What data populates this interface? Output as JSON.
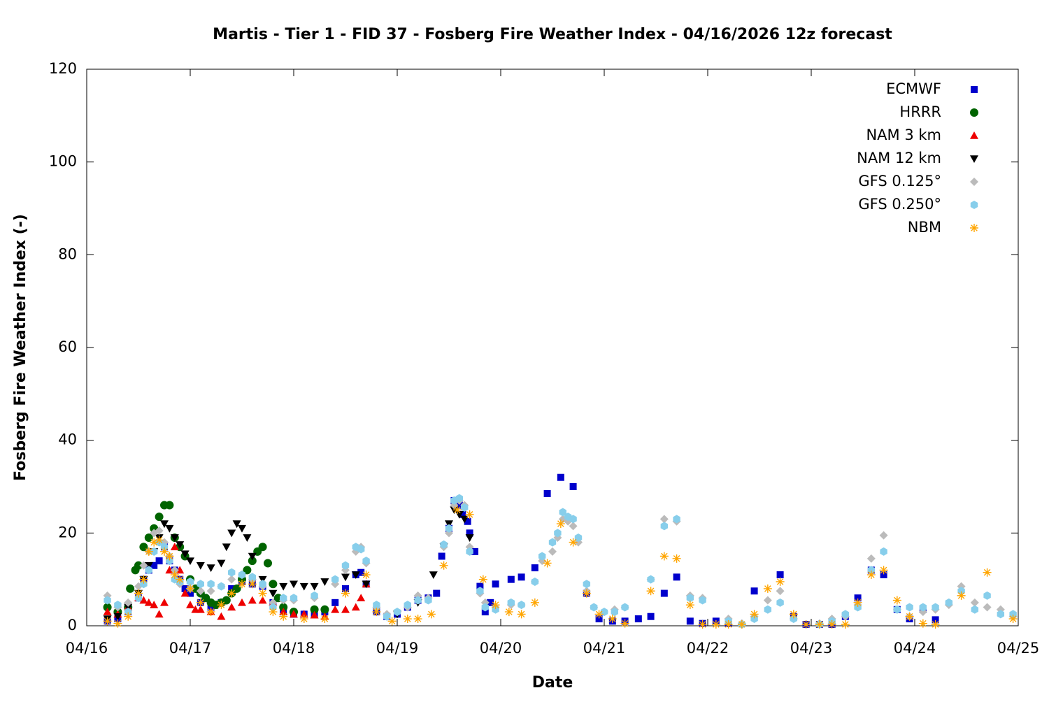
{
  "chart_data": {
    "type": "scatter",
    "title": "Martis - Tier 1 - FID 37 - Fosberg Fire Weather Index - 04/16/2026 12z forecast",
    "x_label": "Date",
    "y_label": "Fosberg Fire Weather Index (-)",
    "xlim": [
      0,
      9
    ],
    "ylim": [
      0,
      120
    ],
    "xticks": [
      {
        "value": 0,
        "label": "04/16"
      },
      {
        "value": 1,
        "label": "04/17"
      },
      {
        "value": 2,
        "label": "04/18"
      },
      {
        "value": 3,
        "label": "04/19"
      },
      {
        "value": 4,
        "label": "04/20"
      },
      {
        "value": 5,
        "label": "04/21"
      },
      {
        "value": 6,
        "label": "04/22"
      },
      {
        "value": 7,
        "label": "04/23"
      },
      {
        "value": 8,
        "label": "04/24"
      },
      {
        "value": 9,
        "label": "04/25"
      }
    ],
    "yticks": [
      0,
      20,
      40,
      60,
      80,
      100,
      120
    ],
    "legend": "top-right",
    "series": [
      {
        "name": "ECMWF",
        "color": "#0000cc",
        "marker": "square",
        "x": [
          0.2,
          0.3,
          0.4,
          0.5,
          0.55,
          0.6,
          0.65,
          0.7,
          0.75,
          0.8,
          0.85,
          0.9,
          0.95,
          1.0,
          1.1,
          1.2,
          1.3,
          1.4,
          1.5,
          1.6,
          1.7,
          1.8,
          1.9,
          2.0,
          2.1,
          2.2,
          2.3,
          2.4,
          2.5,
          2.6,
          2.65,
          2.7,
          2.8,
          2.9,
          3.0,
          3.1,
          3.2,
          3.3,
          3.38,
          3.43,
          3.5,
          3.55,
          3.6,
          3.63,
          3.68,
          3.7,
          3.75,
          3.8,
          3.85,
          3.9,
          3.95,
          4.1,
          4.2,
          4.33,
          4.45,
          4.58,
          4.7,
          4.83,
          4.95,
          5.08,
          5.2,
          5.33,
          5.45,
          5.58,
          5.7,
          5.83,
          5.95,
          6.08,
          6.2,
          6.45,
          6.7,
          6.83,
          6.95,
          7.08,
          7.2,
          7.33,
          7.45,
          7.58,
          7.7,
          7.83,
          7.95,
          8.08,
          8.2
        ],
        "values": [
          1,
          1.5,
          3,
          6,
          10,
          12,
          13,
          14,
          17,
          14,
          12,
          10,
          8,
          7,
          5,
          4,
          5,
          8,
          9.5,
          9,
          8.5,
          5,
          3,
          2.5,
          2.5,
          2.5,
          3,
          5,
          8,
          11,
          11.5,
          9,
          3,
          2,
          2.5,
          4,
          5.5,
          6,
          7,
          15,
          21,
          27,
          26,
          24,
          22.5,
          20,
          16,
          8.5,
          3,
          5,
          9,
          10,
          10.5,
          12.5,
          28.5,
          32,
          30,
          7,
          1.5,
          1,
          1,
          1.5,
          2,
          7,
          10.5,
          1,
          0.5,
          1,
          0.5,
          7.5,
          11,
          2,
          0.3,
          0.3,
          0.3,
          2,
          6,
          12,
          11,
          3.5,
          1.5,
          3.5,
          1.3
        ]
      },
      {
        "name": "HRRR",
        "color": "#006400",
        "marker": "circle",
        "x": [
          0.2,
          0.3,
          0.4,
          0.42,
          0.47,
          0.5,
          0.55,
          0.6,
          0.65,
          0.7,
          0.75,
          0.8,
          0.85,
          0.9,
          0.95,
          1.0,
          1.05,
          1.1,
          1.15,
          1.2,
          1.25,
          1.3,
          1.35,
          1.4,
          1.45,
          1.5,
          1.55,
          1.6,
          1.65,
          1.7,
          1.75,
          1.8,
          1.85,
          1.9,
          2.0,
          2.2,
          2.3
        ],
        "values": [
          4,
          3,
          4,
          8,
          12,
          13,
          17,
          19,
          21,
          23.5,
          26,
          26,
          19,
          17,
          15,
          10,
          8,
          7,
          6,
          5,
          4.5,
          5,
          5.5,
          7,
          8,
          10,
          12,
          14,
          16,
          17,
          13.5,
          9,
          6,
          4,
          3,
          3.5,
          3.5
        ]
      },
      {
        "name": "NAM 3 km",
        "color": "#ee0000",
        "marker": "triangle",
        "x": [
          0.2,
          0.3,
          0.4,
          0.5,
          0.55,
          0.6,
          0.65,
          0.7,
          0.75,
          0.8,
          0.85,
          0.9,
          0.95,
          1.0,
          1.05,
          1.1,
          1.2,
          1.3,
          1.4,
          1.5,
          1.6,
          1.7,
          1.8,
          1.9,
          2.0,
          2.1,
          2.2,
          2.3,
          2.4,
          2.5,
          2.6,
          2.65,
          2.7
        ],
        "values": [
          3,
          2.5,
          4,
          6,
          5.5,
          5,
          4.5,
          2.5,
          5,
          12,
          17,
          12,
          7,
          4.5,
          3.5,
          3.5,
          3,
          2,
          4,
          5,
          5.5,
          5.5,
          5,
          3,
          2.5,
          2.5,
          2.3,
          2,
          3.5,
          3.5,
          4,
          6,
          9
        ]
      },
      {
        "name": "NAM 12 km",
        "color": "#000000",
        "marker": "triangle-down",
        "x": [
          0.2,
          0.3,
          0.4,
          0.5,
          0.55,
          0.6,
          0.65,
          0.7,
          0.75,
          0.8,
          0.85,
          0.9,
          0.95,
          1.0,
          1.1,
          1.2,
          1.3,
          1.35,
          1.4,
          1.45,
          1.5,
          1.55,
          1.6,
          1.7,
          1.8,
          1.9,
          2.0,
          2.1,
          2.2,
          2.3,
          2.5,
          2.6,
          2.7,
          3.0,
          3.2,
          3.35,
          3.45,
          3.5,
          3.55,
          3.6,
          3.65,
          3.7
        ],
        "values": [
          1.5,
          2,
          4,
          7,
          10,
          13,
          16,
          19,
          22,
          21,
          19,
          17.5,
          15.5,
          14,
          13,
          12.5,
          13.5,
          17,
          20,
          22,
          21,
          19,
          15,
          10,
          7,
          8.5,
          9,
          8.5,
          8.5,
          9.5,
          10.5,
          11,
          9,
          2.5,
          5,
          11,
          17,
          22,
          25,
          24,
          23,
          19
        ]
      },
      {
        "name": "GFS 0.125°",
        "color": "#bbbbbb",
        "marker": "diamond",
        "x": [
          0.2,
          0.3,
          0.4,
          0.5,
          0.55,
          0.6,
          0.65,
          0.7,
          0.75,
          0.8,
          0.85,
          0.9,
          1.0,
          1.1,
          1.2,
          1.3,
          1.4,
          1.5,
          1.6,
          1.7,
          1.8,
          1.9,
          2.0,
          2.2,
          2.4,
          2.5,
          2.6,
          2.65,
          2.7,
          2.8,
          2.9,
          3.0,
          3.1,
          3.2,
          3.3,
          3.45,
          3.5,
          3.55,
          3.6,
          3.65,
          3.7,
          3.8,
          3.85,
          3.95,
          4.1,
          4.2,
          4.33,
          4.4,
          4.5,
          4.55,
          4.6,
          4.65,
          4.7,
          4.75,
          4.83,
          4.9,
          5.0,
          5.1,
          5.2,
          5.45,
          5.58,
          5.7,
          5.83,
          5.95,
          6.2,
          6.33,
          6.45,
          6.58,
          6.7,
          6.83,
          7.08,
          7.2,
          7.33,
          7.45,
          7.58,
          7.7,
          7.83,
          7.95,
          8.08,
          8.2,
          8.33,
          8.45,
          8.58,
          8.7,
          8.83,
          8.95
        ],
        "values": [
          6.5,
          4,
          5,
          8.5,
          13,
          16,
          20,
          20.5,
          18,
          15,
          12,
          9,
          8,
          7.5,
          7.5,
          8.5,
          10,
          11,
          10,
          8.5,
          5,
          5.5,
          5.5,
          6,
          9,
          12,
          16,
          17,
          13.5,
          4,
          2.5,
          3,
          4,
          6.5,
          6,
          17,
          20,
          26,
          27,
          26,
          17,
          7,
          5,
          4,
          4.5,
          4.5,
          9.5,
          14,
          16,
          19,
          23,
          22.5,
          21.5,
          18,
          7.5,
          4,
          3,
          3.5,
          4,
          10,
          23,
          22.5,
          6.5,
          6,
          1.5,
          0.5,
          2,
          5.5,
          7.5,
          1.5,
          0.5,
          1.5,
          2,
          4.5,
          14.5,
          19.5,
          3.5,
          2,
          3,
          3.5,
          4.5,
          8.5,
          5,
          4,
          3.5,
          2
        ]
      },
      {
        "name": "GFS 0.250°",
        "color": "#87ceeb",
        "marker": "hexagon",
        "x": [
          0.2,
          0.3,
          0.4,
          0.5,
          0.55,
          0.6,
          0.65,
          0.7,
          0.75,
          0.8,
          0.85,
          0.9,
          1.0,
          1.1,
          1.2,
          1.3,
          1.4,
          1.5,
          1.6,
          1.7,
          1.8,
          1.9,
          2.0,
          2.2,
          2.4,
          2.5,
          2.6,
          2.65,
          2.7,
          2.8,
          2.9,
          3.0,
          3.1,
          3.2,
          3.3,
          3.45,
          3.5,
          3.55,
          3.6,
          3.65,
          3.7,
          3.8,
          3.85,
          3.95,
          4.1,
          4.2,
          4.33,
          4.4,
          4.5,
          4.55,
          4.6,
          4.65,
          4.7,
          4.75,
          4.83,
          4.9,
          5.0,
          5.1,
          5.2,
          5.45,
          5.58,
          5.7,
          5.83,
          5.95,
          6.2,
          6.33,
          6.45,
          6.58,
          6.7,
          6.83,
          7.08,
          7.2,
          7.33,
          7.45,
          7.58,
          7.7,
          7.83,
          7.95,
          8.08,
          8.2,
          8.33,
          8.45,
          8.58,
          8.7,
          8.83,
          8.95
        ],
        "values": [
          5.5,
          4.5,
          3,
          6,
          9,
          12,
          16,
          18,
          17,
          14,
          10,
          9.5,
          9.5,
          9,
          9,
          8.5,
          11.5,
          11,
          10.5,
          9,
          4,
          6,
          6,
          6.5,
          10,
          13,
          17,
          16.5,
          14,
          4.5,
          2,
          3,
          4.5,
          5.5,
          5.5,
          17.5,
          21,
          27,
          27.5,
          25.5,
          16,
          7.5,
          4,
          3.5,
          5,
          4.5,
          9.5,
          15,
          18,
          20,
          24.5,
          23.5,
          23,
          19,
          9,
          4,
          3,
          3,
          4,
          10,
          21.5,
          23,
          6,
          5.5,
          1,
          0.3,
          1.5,
          3.5,
          5,
          1.5,
          0.3,
          1,
          2.5,
          4,
          12,
          16,
          3.5,
          4,
          4,
          4,
          5,
          7.5,
          3.5,
          6.5,
          2.5,
          2.5
        ]
      },
      {
        "name": "NBM",
        "color": "#ffa500",
        "marker": "asterisk",
        "x": [
          0.2,
          0.3,
          0.4,
          0.5,
          0.55,
          0.6,
          0.65,
          0.7,
          0.75,
          0.8,
          0.85,
          0.9,
          1.0,
          1.1,
          1.2,
          1.3,
          1.4,
          1.5,
          1.6,
          1.7,
          1.8,
          1.9,
          2.1,
          2.3,
          2.5,
          2.7,
          2.8,
          2.95,
          3.1,
          3.2,
          3.33,
          3.45,
          3.58,
          3.7,
          3.83,
          3.95,
          4.08,
          4.2,
          4.33,
          4.45,
          4.58,
          4.7,
          4.83,
          4.95,
          5.08,
          5.2,
          5.45,
          5.58,
          5.7,
          5.83,
          5.95,
          6.08,
          6.2,
          6.33,
          6.45,
          6.58,
          6.7,
          6.83,
          6.95,
          7.08,
          7.2,
          7.33,
          7.45,
          7.58,
          7.7,
          7.83,
          7.95,
          8.08,
          8.2,
          8.45,
          8.7,
          8.95
        ],
        "values": [
          1,
          0.5,
          2,
          7,
          10,
          16,
          18,
          18.5,
          16,
          15,
          11,
          10,
          8,
          5,
          3,
          4.5,
          7,
          9,
          9,
          7,
          3,
          2,
          1.5,
          1.5,
          7,
          11,
          3,
          1,
          1.5,
          1.5,
          2.5,
          13,
          25,
          24,
          10,
          4.5,
          3,
          2.5,
          5,
          13.5,
          22,
          18,
          7,
          2.5,
          1.5,
          0.5,
          7.5,
          15,
          14.5,
          4.5,
          0.3,
          0.3,
          0.3,
          0.3,
          2.5,
          8,
          9.5,
          2.5,
          0.3,
          0.3,
          0.3,
          0.3,
          5,
          11,
          12,
          5.5,
          2,
          0.5,
          0.3,
          6.5,
          11.5,
          1.5
        ]
      }
    ]
  }
}
